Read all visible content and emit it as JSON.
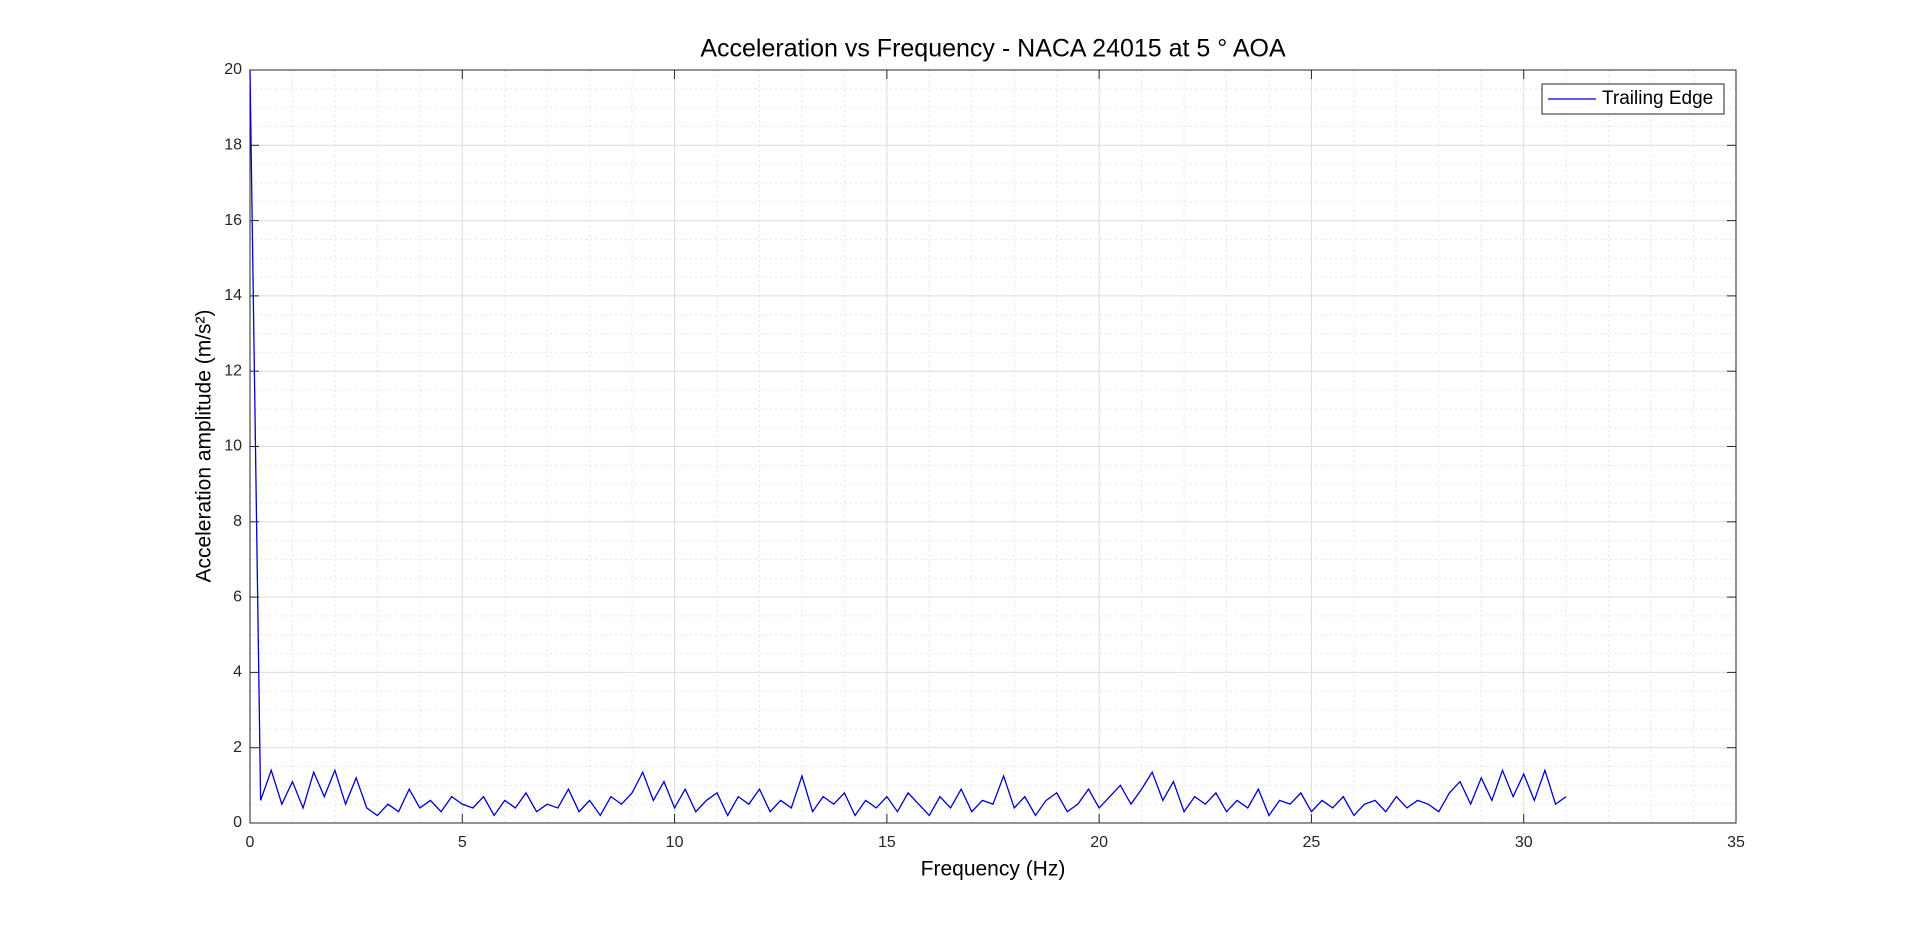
{
  "chart_data": {
    "type": "line",
    "title": "Acceleration vs Frequency - NACA 24015 at 5 ° AOA",
    "xlabel": "Frequency (Hz)",
    "ylabel": "Acceleration amplitude (m/s²)",
    "x": [
      0,
      0.25,
      0.5,
      0.75,
      1,
      1.25,
      1.5,
      1.75,
      2,
      2.25,
      2.5,
      2.75,
      3,
      3.25,
      3.5,
      3.75,
      4,
      4.25,
      4.5,
      4.75,
      5,
      5.25,
      5.5,
      5.75,
      6,
      6.25,
      6.5,
      6.75,
      7,
      7.25,
      7.5,
      7.75,
      8,
      8.25,
      8.5,
      8.75,
      9,
      9.25,
      9.5,
      9.75,
      10,
      10.25,
      10.5,
      10.75,
      11,
      11.25,
      11.5,
      11.75,
      12,
      12.25,
      12.5,
      12.75,
      13,
      13.25,
      13.5,
      13.75,
      14,
      14.25,
      14.5,
      14.75,
      15,
      15.25,
      15.5,
      15.75,
      16,
      16.25,
      16.5,
      16.75,
      17,
      17.25,
      17.5,
      17.75,
      18,
      18.25,
      18.5,
      18.75,
      19,
      19.25,
      19.5,
      19.75,
      20,
      20.25,
      20.5,
      20.75,
      21,
      21.25,
      21.5,
      21.75,
      22,
      22.25,
      22.5,
      22.75,
      23,
      23.25,
      23.5,
      23.75,
      24,
      24.25,
      24.5,
      24.75,
      25,
      25.25,
      25.5,
      25.75,
      26,
      26.25,
      26.5,
      26.75,
      27,
      27.25,
      27.5,
      27.75,
      28,
      28.25,
      28.5,
      28.75,
      29,
      29.25,
      29.5,
      29.75,
      30,
      30.25,
      30.5,
      30.75,
      31
    ],
    "series": [
      {
        "name": "Trailing Edge",
        "color": "#0000cc",
        "values": [
          20,
          0.6,
          1.4,
          0.5,
          1.1,
          0.4,
          1.35,
          0.7,
          1.4,
          0.5,
          1.2,
          0.4,
          0.2,
          0.5,
          0.3,
          0.9,
          0.4,
          0.6,
          0.3,
          0.7,
          0.5,
          0.4,
          0.7,
          0.2,
          0.6,
          0.4,
          0.8,
          0.3,
          0.5,
          0.4,
          0.9,
          0.3,
          0.6,
          0.2,
          0.7,
          0.5,
          0.8,
          1.35,
          0.6,
          1.1,
          0.4,
          0.9,
          0.3,
          0.6,
          0.8,
          0.2,
          0.7,
          0.5,
          0.9,
          0.3,
          0.6,
          0.4,
          1.25,
          0.3,
          0.7,
          0.5,
          0.8,
          0.2,
          0.6,
          0.4,
          0.7,
          0.3,
          0.8,
          0.5,
          0.2,
          0.7,
          0.4,
          0.9,
          0.3,
          0.6,
          0.5,
          1.25,
          0.4,
          0.7,
          0.2,
          0.6,
          0.8,
          0.3,
          0.5,
          0.9,
          0.4,
          0.7,
          1.0,
          0.5,
          0.9,
          1.35,
          0.6,
          1.1,
          0.3,
          0.7,
          0.5,
          0.8,
          0.3,
          0.6,
          0.4,
          0.9,
          0.2,
          0.6,
          0.5,
          0.8,
          0.3,
          0.6,
          0.4,
          0.7,
          0.2,
          0.5,
          0.6,
          0.3,
          0.7,
          0.4,
          0.6,
          0.5,
          0.3,
          0.8,
          1.1,
          0.5,
          1.2,
          0.6,
          1.4,
          0.7,
          1.3,
          0.6,
          1.4,
          0.5,
          0.7
        ]
      }
    ],
    "xlim": [
      0,
      35
    ],
    "xticks": [
      0,
      5,
      10,
      15,
      20,
      25,
      30,
      35
    ],
    "ylim": [
      0,
      20
    ],
    "yticks": [
      0,
      2,
      4,
      6,
      8,
      10,
      12,
      14,
      16,
      18,
      20
    ],
    "grid": true,
    "minor_grid": true,
    "legend": "northeast"
  }
}
